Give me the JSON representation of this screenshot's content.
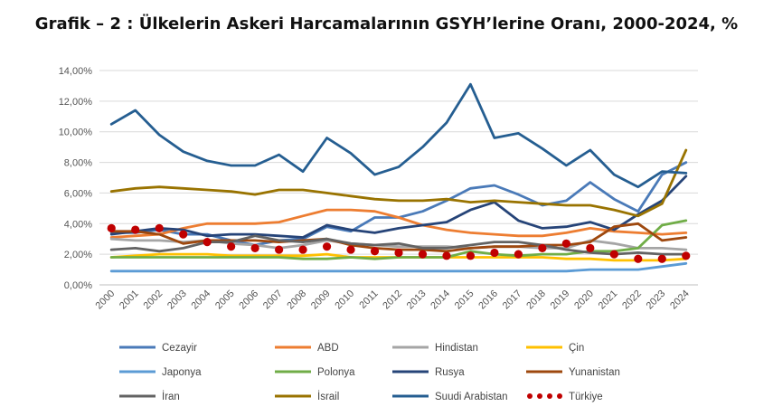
{
  "title": "Grafik – 2 : Ülkelerin Askeri Harcamalarının GSYH’lerine Oranı, 2000-2024, %",
  "chart_data": {
    "type": "line",
    "title": "Grafik – 2 : Ülkelerin Askeri Harcamalarının GSYH’lerine Oranı, 2000-2024, %",
    "xlabel": "",
    "ylabel": "",
    "ylim": [
      0,
      14
    ],
    "y_ticks": [
      "0,00%",
      "2,00%",
      "4,00%",
      "6,00%",
      "8,00%",
      "10,00%",
      "12,00%",
      "14,00%"
    ],
    "grid": true,
    "legend": "bottom",
    "categories": [
      "2000",
      "2001",
      "2002",
      "2003",
      "2004",
      "2005",
      "2006",
      "2007",
      "2008",
      "2009",
      "2010",
      "2011",
      "2012",
      "2013",
      "2014",
      "2015",
      "2016",
      "2017",
      "2018",
      "2019",
      "2020",
      "2021",
      "2022",
      "2023",
      "2024"
    ],
    "series": [
      {
        "name": "Cezayir",
        "color": "#4a7ab8",
        "dash": "solid",
        "values": [
          3.4,
          3.4,
          3.6,
          3.3,
          3.3,
          2.9,
          2.6,
          2.9,
          3.0,
          3.8,
          3.5,
          4.4,
          4.4,
          4.8,
          5.5,
          6.3,
          6.5,
          5.9,
          5.2,
          5.5,
          6.7,
          5.6,
          4.8,
          7.2,
          8.0
        ]
      },
      {
        "name": "ABD",
        "color": "#ed7d31",
        "dash": "solid",
        "values": [
          3.1,
          3.2,
          3.3,
          3.7,
          4.0,
          4.0,
          4.0,
          4.1,
          4.5,
          4.9,
          4.9,
          4.8,
          4.4,
          3.9,
          3.6,
          3.4,
          3.3,
          3.2,
          3.2,
          3.4,
          3.7,
          3.5,
          3.4,
          3.3,
          3.4
        ]
      },
      {
        "name": "Hindistan",
        "color": "#a5a5a5",
        "dash": "solid",
        "values": [
          3.0,
          2.9,
          2.9,
          2.8,
          2.9,
          2.7,
          2.6,
          2.4,
          2.6,
          2.9,
          2.7,
          2.6,
          2.5,
          2.5,
          2.5,
          2.4,
          2.5,
          2.5,
          2.4,
          2.4,
          2.9,
          2.7,
          2.4,
          2.4,
          2.3
        ]
      },
      {
        "name": "Çin",
        "color": "#ffc000",
        "dash": "solid",
        "values": [
          1.8,
          1.9,
          2.0,
          2.0,
          2.0,
          1.9,
          1.9,
          1.9,
          1.9,
          2.0,
          1.8,
          1.8,
          1.8,
          1.8,
          1.8,
          1.8,
          1.8,
          1.8,
          1.8,
          1.7,
          1.7,
          1.6,
          1.6,
          1.6,
          1.7
        ]
      },
      {
        "name": "Japonya",
        "color": "#5b9bd5",
        "dash": "solid",
        "values": [
          0.9,
          0.9,
          0.9,
          0.9,
          0.9,
          0.9,
          0.9,
          0.9,
          0.9,
          0.9,
          0.9,
          0.9,
          0.9,
          0.9,
          0.9,
          0.9,
          0.9,
          0.9,
          0.9,
          0.9,
          1.0,
          1.0,
          1.0,
          1.2,
          1.4
        ]
      },
      {
        "name": "Polonya",
        "color": "#70ad47",
        "dash": "solid",
        "values": [
          1.8,
          1.8,
          1.8,
          1.8,
          1.8,
          1.8,
          1.8,
          1.8,
          1.7,
          1.7,
          1.8,
          1.7,
          1.8,
          1.8,
          1.8,
          2.2,
          2.0,
          1.9,
          2.0,
          2.0,
          2.2,
          2.2,
          2.4,
          3.9,
          4.2
        ]
      },
      {
        "name": "Rusya",
        "color": "#264478",
        "dash": "solid",
        "values": [
          3.3,
          3.5,
          3.7,
          3.6,
          3.2,
          3.3,
          3.3,
          3.2,
          3.1,
          3.9,
          3.6,
          3.4,
          3.7,
          3.9,
          4.1,
          4.9,
          5.4,
          4.2,
          3.7,
          3.8,
          4.1,
          3.6,
          4.6,
          5.5,
          7.1
        ]
      },
      {
        "name": "Yunanistan",
        "color": "#9e480e",
        "dash": "solid",
        "values": [
          3.5,
          3.5,
          3.3,
          2.7,
          2.9,
          2.9,
          2.9,
          2.8,
          2.9,
          3.0,
          2.6,
          2.4,
          2.3,
          2.3,
          2.2,
          2.4,
          2.5,
          2.5,
          2.6,
          2.6,
          2.8,
          3.8,
          4.0,
          2.9,
          3.1
        ]
      },
      {
        "name": "İran",
        "color": "#636363",
        "dash": "solid",
        "values": [
          2.3,
          2.4,
          2.2,
          2.4,
          2.8,
          2.8,
          3.2,
          2.9,
          2.8,
          3.0,
          2.7,
          2.6,
          2.7,
          2.4,
          2.4,
          2.6,
          2.8,
          2.8,
          2.6,
          2.3,
          2.1,
          2.0,
          2.1,
          2.0,
          2.0
        ]
      },
      {
        "name": "İsrail",
        "color": "#997300",
        "dash": "solid",
        "values": [
          6.1,
          6.3,
          6.4,
          6.3,
          6.2,
          6.1,
          5.9,
          6.2,
          6.2,
          6.0,
          5.8,
          5.6,
          5.5,
          5.5,
          5.6,
          5.4,
          5.5,
          5.4,
          5.3,
          5.2,
          5.2,
          4.9,
          4.5,
          5.3,
          8.8
        ]
      },
      {
        "name": "Suudi Arabistan",
        "color": "#255e91",
        "dash": "solid",
        "values": [
          10.5,
          11.4,
          9.8,
          8.7,
          8.1,
          7.8,
          7.8,
          8.5,
          7.4,
          9.6,
          8.6,
          7.2,
          7.7,
          9.0,
          10.6,
          13.1,
          9.6,
          9.9,
          8.9,
          7.8,
          8.8,
          7.2,
          6.4,
          7.4,
          7.3
        ]
      },
      {
        "name": "Türkiye",
        "color": "#c00000",
        "dash": "dots",
        "values": [
          3.7,
          3.6,
          3.7,
          3.3,
          2.8,
          2.5,
          2.4,
          2.3,
          2.3,
          2.5,
          2.3,
          2.2,
          2.1,
          2.0,
          1.9,
          1.9,
          2.1,
          2.0,
          2.4,
          2.7,
          2.4,
          2.0,
          1.7,
          1.7,
          1.9
        ]
      }
    ]
  }
}
